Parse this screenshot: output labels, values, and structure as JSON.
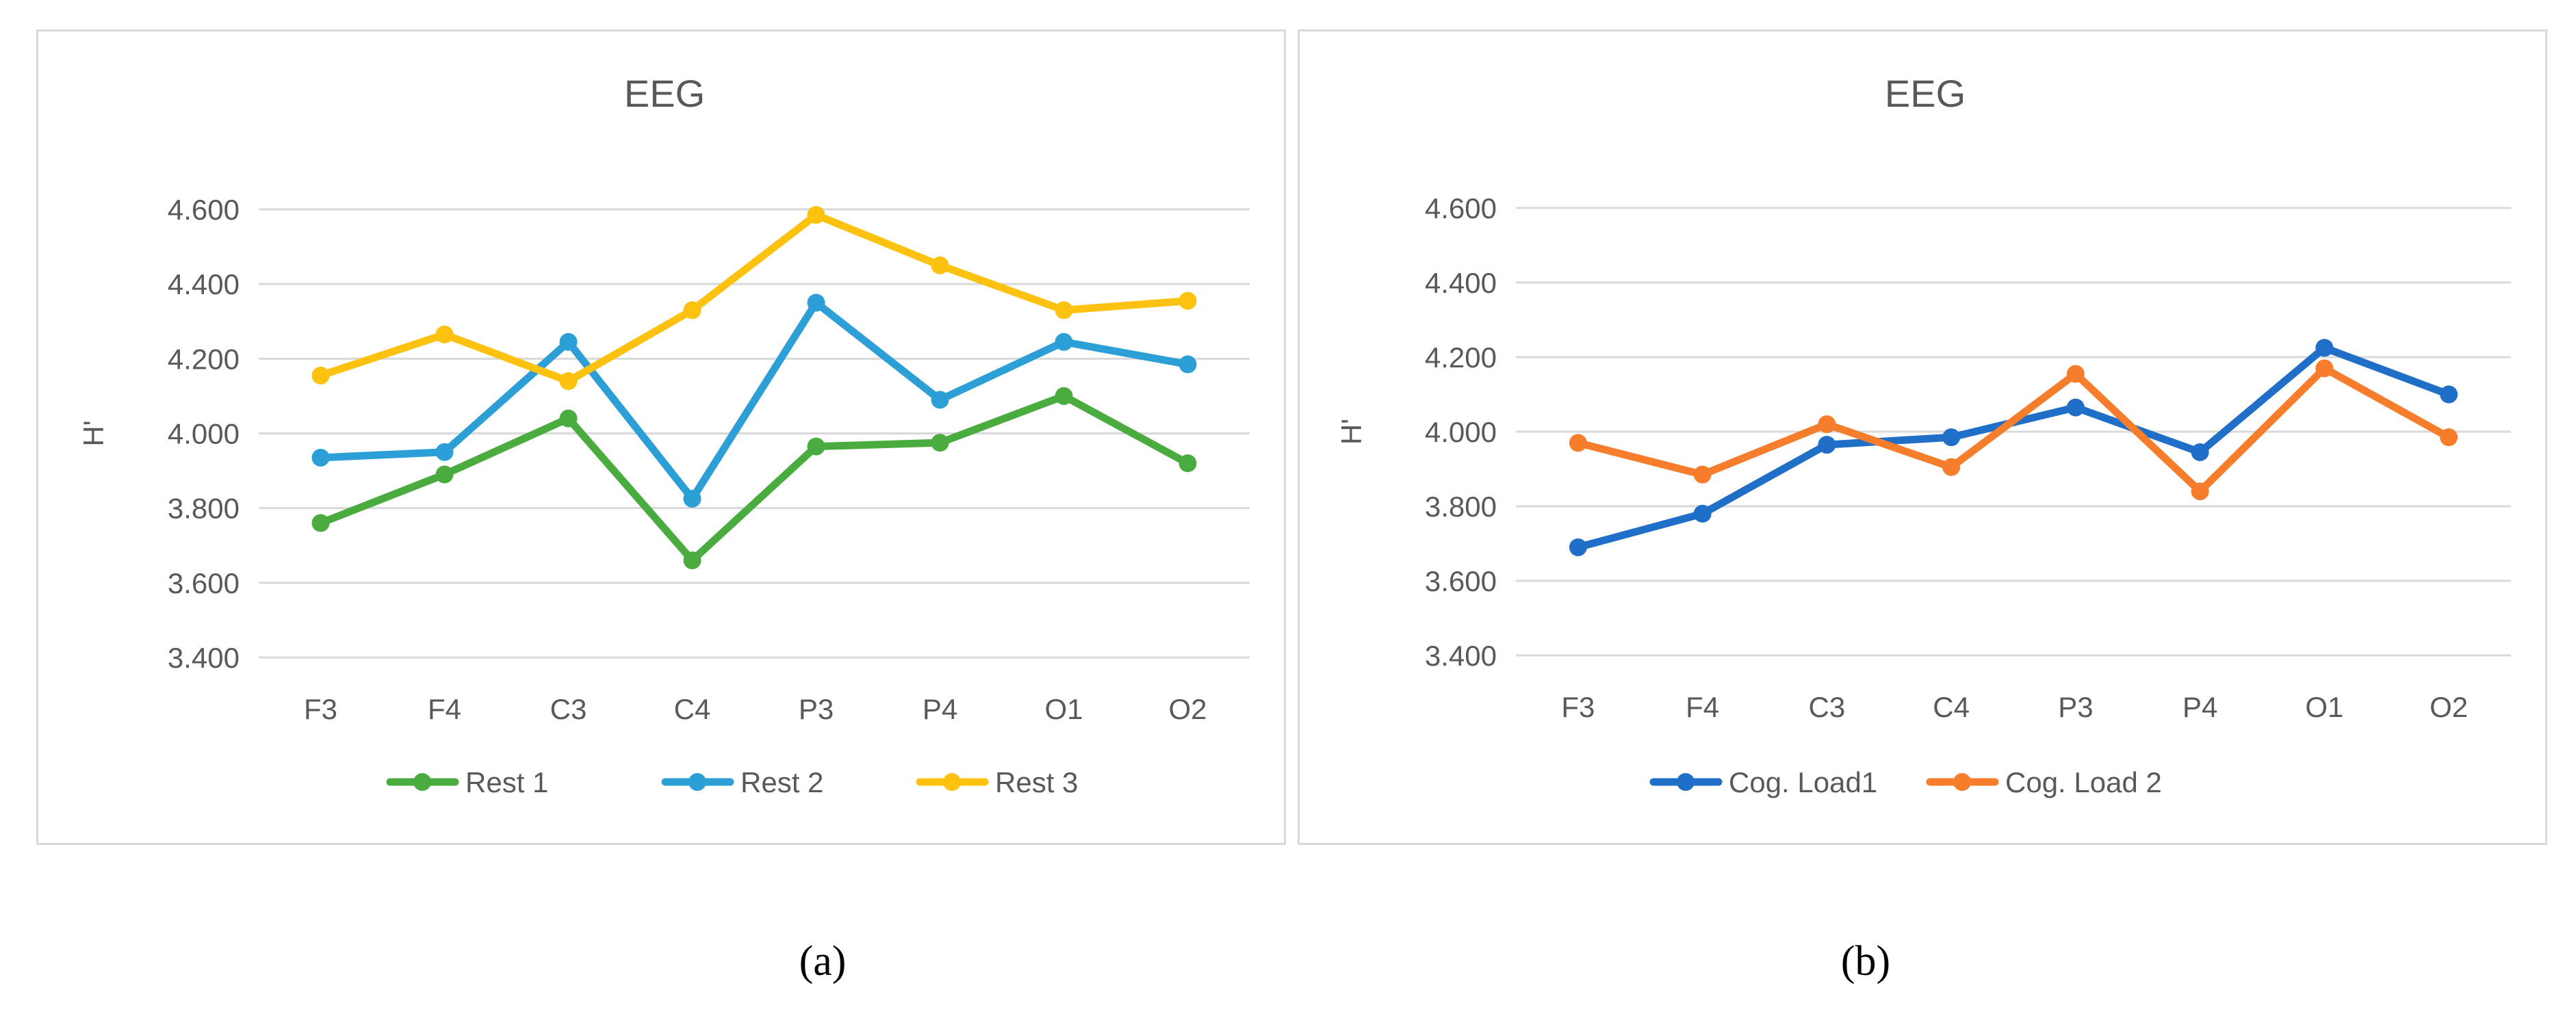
{
  "chart_data": [
    {
      "type": "line",
      "panel": "a",
      "title": "EEG",
      "xlabel": "",
      "ylabel": "H'",
      "categories": [
        "F3",
        "F4",
        "C3",
        "C4",
        "P3",
        "P4",
        "O1",
        "O2"
      ],
      "ylim": [
        3.4,
        4.6
      ],
      "yticks": [
        "3.400",
        "3.600",
        "3.800",
        "4.000",
        "4.200",
        "4.400",
        "4.600"
      ],
      "grid": true,
      "legend": "bottom",
      "series": [
        {
          "name": "Rest 1",
          "color": "#4aab3e",
          "values": [
            3.76,
            3.89,
            4.04,
            3.66,
            3.965,
            3.975,
            4.1,
            3.92
          ]
        },
        {
          "name": "Rest 2",
          "color": "#2c9fd6",
          "values": [
            3.935,
            3.95,
            4.245,
            3.825,
            4.35,
            4.09,
            4.245,
            4.185
          ]
        },
        {
          "name": "Rest 3",
          "color": "#fdc10f",
          "values": [
            4.155,
            4.265,
            4.14,
            4.33,
            4.585,
            4.45,
            4.33,
            4.355
          ]
        }
      ]
    },
    {
      "type": "line",
      "panel": "b",
      "title": "EEG",
      "xlabel": "",
      "ylabel": "H'",
      "categories": [
        "F3",
        "F4",
        "C3",
        "C4",
        "P3",
        "P4",
        "O1",
        "O2"
      ],
      "ylim": [
        3.4,
        4.6
      ],
      "yticks": [
        "3.400",
        "3.600",
        "3.800",
        "4.000",
        "4.200",
        "4.400",
        "4.600"
      ],
      "grid": true,
      "legend": "bottom",
      "series": [
        {
          "name": "Cog. Load1",
          "color": "#1f6ec8",
          "values": [
            3.69,
            3.78,
            3.965,
            3.985,
            4.065,
            3.945,
            4.225,
            4.1
          ]
        },
        {
          "name": "Cog. Load 2",
          "color": "#f57d2b",
          "values": [
            3.97,
            3.885,
            4.02,
            3.905,
            4.155,
            3.84,
            4.17,
            3.985
          ]
        }
      ]
    }
  ],
  "captions": {
    "a": "(a)",
    "b": "(b)"
  }
}
